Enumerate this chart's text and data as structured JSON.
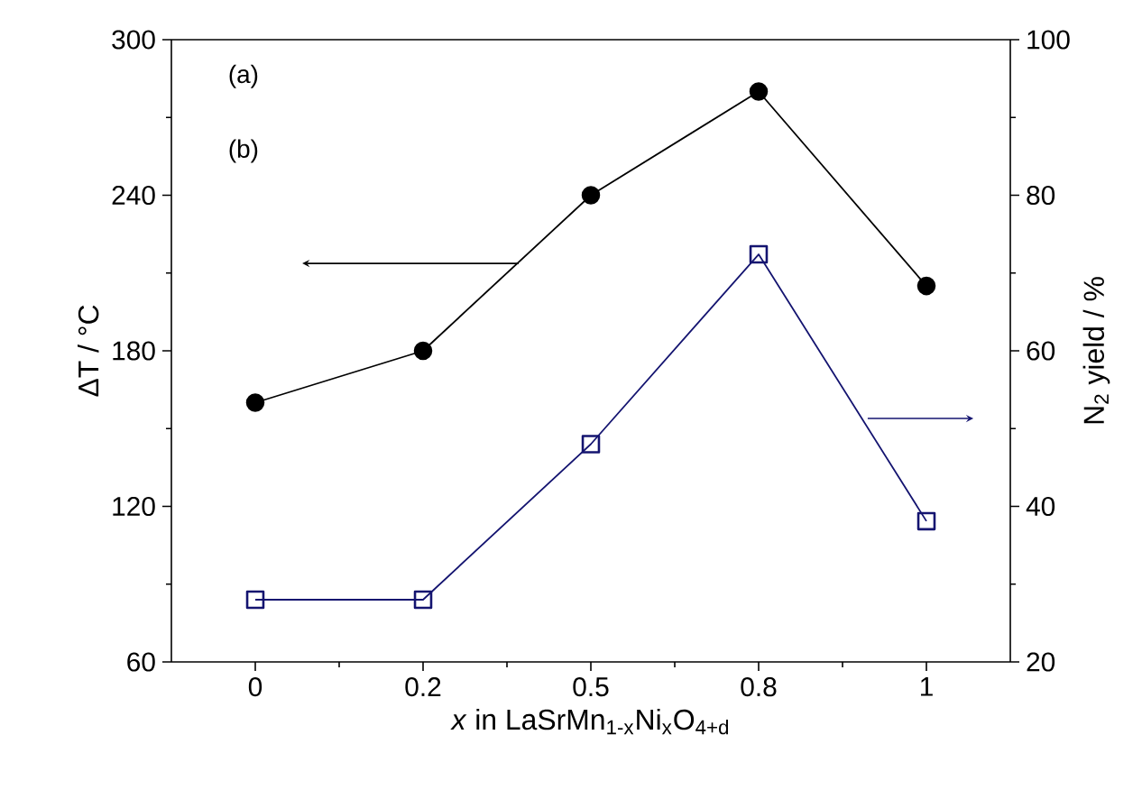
{
  "chart_data": {
    "type": "line",
    "xlabel": "*x* in LaSrMn$_{1-x}$Ni$_{x}$O$_{4+d}$",
    "ylabel": "ΔT / °C",
    "y2label": "N$_{2}$ yield / %",
    "annotations": [
      "(a)",
      "(b)"
    ],
    "categories": [
      "0",
      "0.2",
      "0.5",
      "0.8",
      "1"
    ],
    "ylim": [
      60,
      300
    ],
    "yticks": [
      60,
      120,
      180,
      240,
      300
    ],
    "y2lim": [
      20,
      100
    ],
    "y2ticks": [
      20,
      40,
      60,
      80,
      100
    ],
    "series": [
      {
        "color": "#000000",
        "marker": "circle",
        "values": [
          160,
          180,
          240,
          280,
          205
        ]
      },
      {
        "color": "#141470",
        "marker": "square",
        "axis": "y2",
        "values": [
          28,
          28,
          48,
          72.4,
          38.1
        ]
      }
    ],
    "grid": false,
    "line_style": "solid"
  }
}
